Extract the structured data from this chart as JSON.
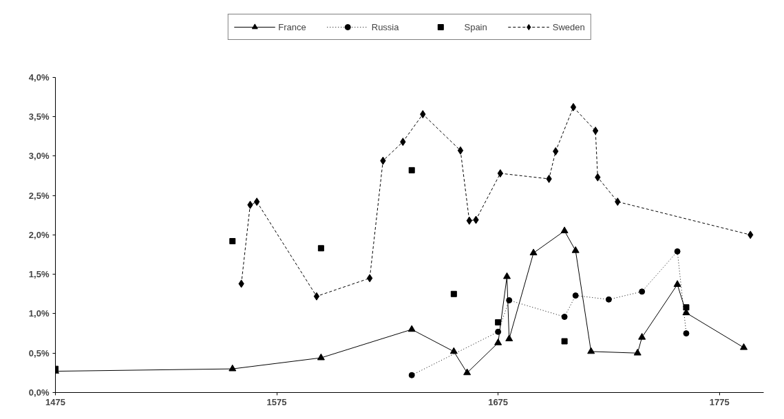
{
  "chart_data": {
    "type": "line",
    "xlim": [
      1475,
      1795
    ],
    "xticks": [
      1475,
      1575,
      1675,
      1775
    ],
    "ylim": [
      0,
      4
    ],
    "yticks": [
      {
        "value": 0,
        "label": "0,0%"
      },
      {
        "value": 0.5,
        "label": "0,5%"
      },
      {
        "value": 1,
        "label": "1,0%"
      },
      {
        "value": 1.5,
        "label": "1,5%"
      },
      {
        "value": 2,
        "label": "2,0%"
      },
      {
        "value": 2.5,
        "label": "2,5%"
      },
      {
        "value": 3,
        "label": "3,0%"
      },
      {
        "value": 3.5,
        "label": "3,5%"
      },
      {
        "value": 4,
        "label": "4,0%"
      }
    ],
    "grid": false,
    "legend": "top",
    "series": [
      {
        "name": "France",
        "marker": "triangle",
        "line_style": "solid",
        "color": "#000000",
        "x": [
          1475,
          1555,
          1595,
          1636,
          1655,
          1661,
          1675,
          1679,
          1680,
          1691,
          1705,
          1710,
          1717,
          1738,
          1740,
          1756,
          1760,
          1786
        ],
        "values": [
          0.27,
          0.3,
          0.44,
          0.8,
          0.52,
          0.25,
          0.63,
          1.47,
          0.68,
          1.77,
          2.05,
          1.8,
          0.52,
          0.5,
          0.7,
          1.37,
          1.01,
          0.57
        ]
      },
      {
        "name": "Russia",
        "marker": "circle",
        "line_style": "dotted",
        "color": "#000000",
        "x": [
          1636,
          1675,
          1680,
          1705,
          1710,
          1725,
          1740,
          1756,
          1760
        ],
        "values": [
          0.22,
          0.77,
          1.17,
          0.96,
          1.23,
          1.18,
          1.28,
          1.79,
          0.75
        ]
      },
      {
        "name": "Spain",
        "type": "scatter",
        "marker": "square",
        "color": "#000000",
        "x": [
          1475,
          1555,
          1595,
          1636,
          1655,
          1675,
          1705,
          1760
        ],
        "values": [
          0.3,
          1.92,
          1.83,
          2.82,
          1.25,
          0.89,
          0.65,
          1.08
        ]
      },
      {
        "name": "Sweden",
        "marker": "diamond",
        "line_style": "dashed",
        "color": "#000000",
        "x": [
          1559,
          1563,
          1566,
          1593,
          1617,
          1623,
          1632,
          1641,
          1658,
          1662,
          1665,
          1676,
          1698,
          1701,
          1709,
          1719,
          1720,
          1729,
          1789
        ],
        "values": [
          1.38,
          2.38,
          2.42,
          1.22,
          1.45,
          2.94,
          3.18,
          3.53,
          3.07,
          2.18,
          2.19,
          2.78,
          2.71,
          3.06,
          3.62,
          3.32,
          2.73,
          2.42,
          2.0
        ]
      }
    ]
  }
}
